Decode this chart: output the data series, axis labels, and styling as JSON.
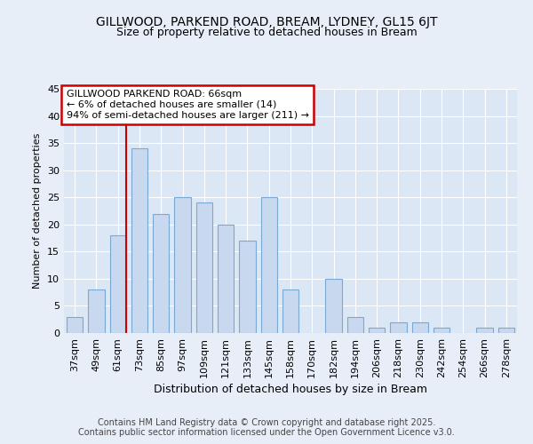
{
  "title1": "GILLWOOD, PARKEND ROAD, BREAM, LYDNEY, GL15 6JT",
  "title2": "Size of property relative to detached houses in Bream",
  "xlabel": "Distribution of detached houses by size in Bream",
  "ylabel": "Number of detached properties",
  "categories": [
    "37sqm",
    "49sqm",
    "61sqm",
    "73sqm",
    "85sqm",
    "97sqm",
    "109sqm",
    "121sqm",
    "133sqm",
    "145sqm",
    "158sqm",
    "170sqm",
    "182sqm",
    "194sqm",
    "206sqm",
    "218sqm",
    "230sqm",
    "242sqm",
    "254sqm",
    "266sqm",
    "278sqm"
  ],
  "values": [
    3,
    8,
    18,
    34,
    22,
    25,
    24,
    20,
    17,
    25,
    8,
    0,
    10,
    3,
    1,
    2,
    2,
    1,
    0,
    1,
    1
  ],
  "bar_color": "#c8d8ee",
  "bar_edge_color": "#7aaad4",
  "vline_x_index": 2,
  "vline_color": "#cc0000",
  "annotation_text": "GILLWOOD PARKEND ROAD: 66sqm\n← 6% of detached houses are smaller (14)\n94% of semi-detached houses are larger (211) →",
  "annotation_box_color": "#ffffff",
  "annotation_box_edge": "#cc0000",
  "ylim": [
    0,
    45
  ],
  "yticks": [
    0,
    5,
    10,
    15,
    20,
    25,
    30,
    35,
    40,
    45
  ],
  "footer": "Contains HM Land Registry data © Crown copyright and database right 2025.\nContains public sector information licensed under the Open Government Licence v3.0.",
  "bg_color": "#e8eef8",
  "plot_bg_color": "#dce7f5",
  "grid_color": "#ffffff",
  "title1_fontsize": 10,
  "title2_fontsize": 9,
  "xlabel_fontsize": 9,
  "ylabel_fontsize": 8,
  "tick_fontsize": 8,
  "annotation_fontsize": 8,
  "footer_fontsize": 7
}
